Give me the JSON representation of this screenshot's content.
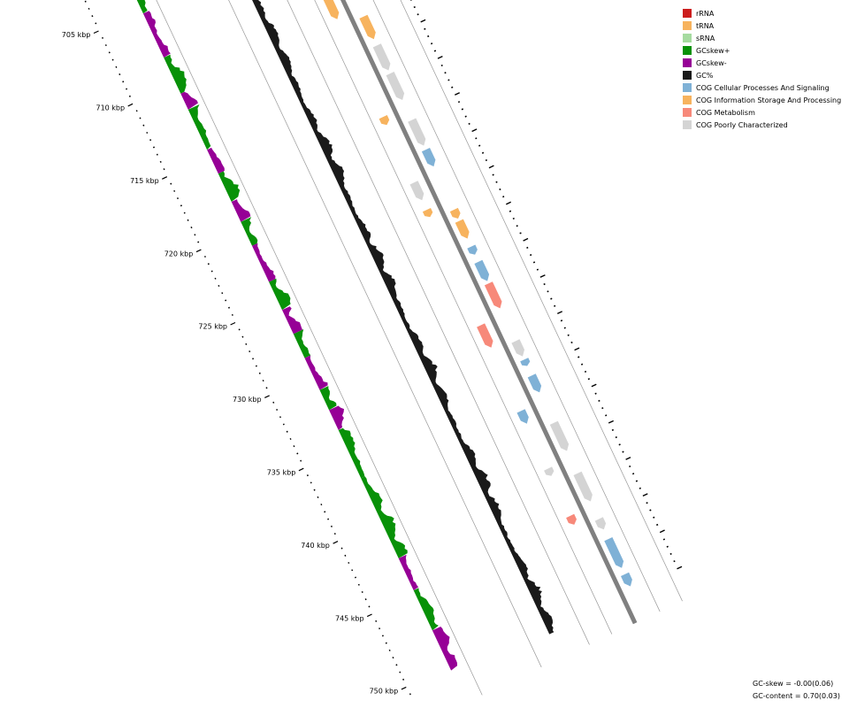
{
  "map": {
    "ticks": [
      {
        "label": "705 kbp"
      },
      {
        "label": "710 kbp"
      },
      {
        "label": "715 kbp"
      },
      {
        "label": "720 kbp"
      },
      {
        "label": "725 kbp"
      },
      {
        "label": "730 kbp"
      },
      {
        "label": "735 kbp"
      },
      {
        "label": "740 kbp"
      },
      {
        "label": "745 kbp"
      },
      {
        "label": "750 kbp"
      }
    ],
    "colors": {
      "gc_skew_plus": "#089108",
      "gc_skew_minus": "#960096",
      "gc_content": "#1a1a1a",
      "backbone": "#808080",
      "cog_cellular": "#7fb1d6",
      "cog_information": "#f7b35e",
      "cog_metabolism": "#f7897a",
      "cog_poorly": "#d4d4d4"
    }
  },
  "legend": {
    "items": [
      {
        "label": "rRNA",
        "color": "#cc1d1d"
      },
      {
        "label": "tRNA",
        "color": "#f7b35e"
      },
      {
        "label": "sRNA",
        "color": "#a6dba0"
      },
      {
        "label": "GCskew+",
        "color": "#089108"
      },
      {
        "label": "GCskew-",
        "color": "#960096"
      },
      {
        "label": "GC%",
        "color": "#1a1a1a"
      },
      {
        "label": "COG Cellular Processes And Signaling",
        "color": "#7fb1d6"
      },
      {
        "label": "COG Information Storage And Processing",
        "color": "#f7b35e"
      },
      {
        "label": "COG Metabolism",
        "color": "#f7897a"
      },
      {
        "label": "COG Poorly Characterized",
        "color": "#d4d4d4"
      }
    ]
  },
  "stats": {
    "gc_skew": "GC-skew = -0.00(0.06)",
    "gc_content": "GC-content = 0.70(0.03)"
  }
}
